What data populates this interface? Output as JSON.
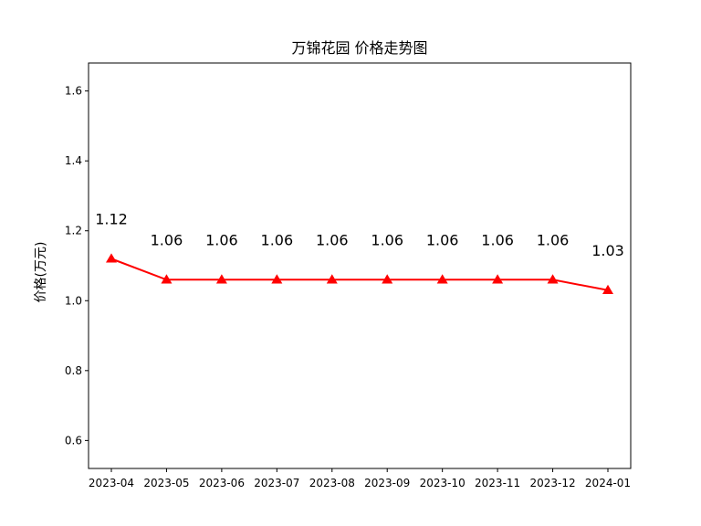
{
  "chart_data": {
    "type": "line",
    "title": "万锦花园 价格走势图",
    "xlabel": "",
    "ylabel": "价格(万元)",
    "categories": [
      "2023-04",
      "2023-05",
      "2023-06",
      "2023-07",
      "2023-08",
      "2023-09",
      "2023-10",
      "2023-11",
      "2023-12",
      "2024-01"
    ],
    "series": [
      {
        "values": [
          1.12,
          1.06,
          1.06,
          1.06,
          1.06,
          1.06,
          1.06,
          1.06,
          1.06,
          1.03
        ],
        "color": "#ff0000",
        "marker": "triangle-up"
      }
    ],
    "data_labels": [
      "1.12",
      "1.06",
      "1.06",
      "1.06",
      "1.06",
      "1.06",
      "1.06",
      "1.06",
      "1.06",
      "1.03"
    ],
    "ylim": [
      0.52,
      1.68
    ],
    "yticks": [
      0.6,
      0.8,
      1.0,
      1.2,
      1.4,
      1.6
    ],
    "ytick_labels": [
      "0.6",
      "0.8",
      "1.0",
      "1.2",
      "1.4",
      "1.6"
    ],
    "grid": false,
    "legend": "none"
  }
}
